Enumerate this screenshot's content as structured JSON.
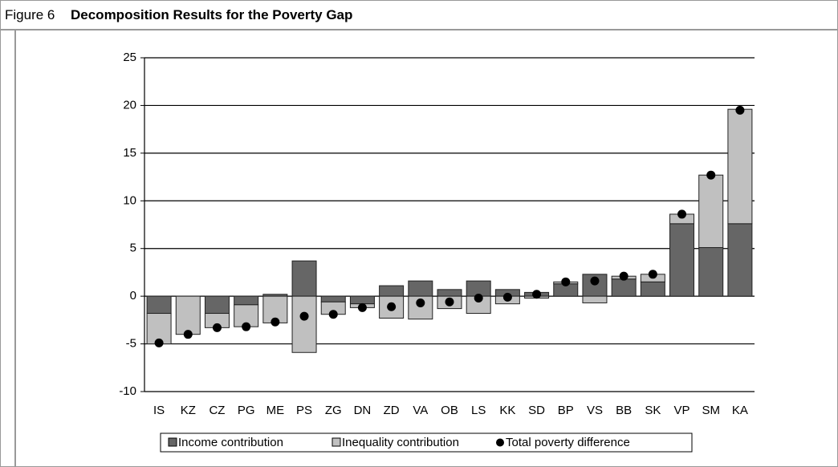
{
  "chart_data": {
    "type": "stacked-bar",
    "figure_label": "Figure 6",
    "title": "Decomposition Results for the Poverty Gap",
    "categories": [
      "IS",
      "KZ",
      "CZ",
      "PG",
      "ME",
      "PS",
      "ZG",
      "DN",
      "ZD",
      "VA",
      "OB",
      "LS",
      "KK",
      "SD",
      "BP",
      "VS",
      "BB",
      "SK",
      "VP",
      "SM",
      "KA"
    ],
    "series": [
      {
        "name": "Income contribution",
        "kind": "bar",
        "color": "#666666",
        "values": [
          -1.8,
          0,
          -1.8,
          -0.9,
          0.2,
          3.7,
          -0.6,
          -0.8,
          1.1,
          1.6,
          0.7,
          1.6,
          0.7,
          0.4,
          1.3,
          2.3,
          1.8,
          1.5,
          7.6,
          5.1,
          7.6
        ]
      },
      {
        "name": "Inequality contribution",
        "kind": "bar",
        "color": "#c0c0c0",
        "values": [
          -3.2,
          -4.0,
          -1.5,
          -2.3,
          -2.8,
          -5.9,
          -1.3,
          -0.4,
          -2.3,
          -2.4,
          -1.3,
          -1.8,
          -0.8,
          -0.2,
          0.2,
          -0.7,
          0.3,
          0.8,
          1.0,
          7.6,
          12.0
        ]
      },
      {
        "name": "Total poverty difference",
        "kind": "marker",
        "color": "#000000",
        "values": [
          -4.9,
          -4.0,
          -3.3,
          -3.2,
          -2.7,
          -2.1,
          -1.9,
          -1.2,
          -1.1,
          -0.7,
          -0.6,
          -0.2,
          -0.1,
          0.2,
          1.5,
          1.6,
          2.1,
          2.3,
          8.6,
          12.7,
          19.5
        ]
      }
    ],
    "ylim": [
      -10,
      25
    ],
    "yticks": [
      -10,
      -5,
      0,
      5,
      10,
      15,
      20,
      25
    ],
    "grid": true
  }
}
